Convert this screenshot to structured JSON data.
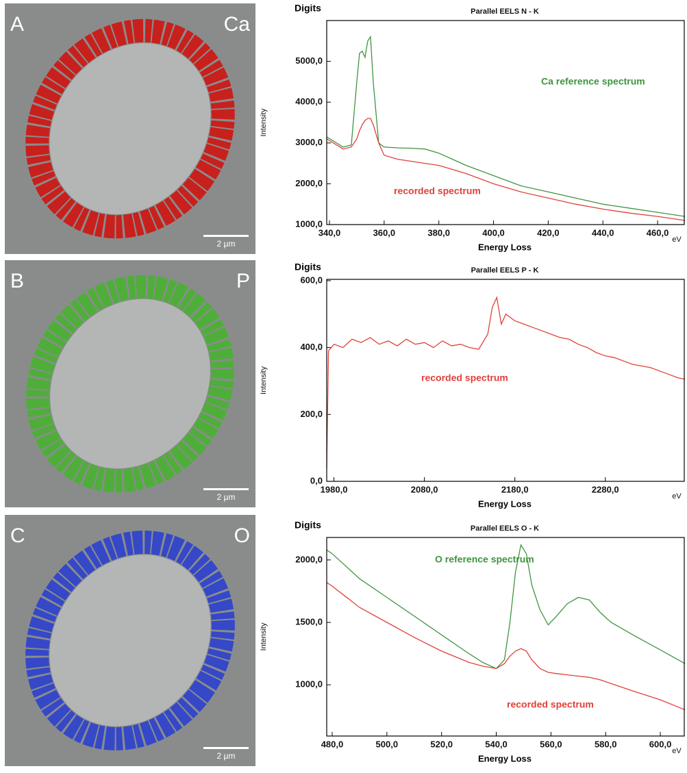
{
  "panels": [
    {
      "letter": "A",
      "element": "Ca",
      "scale": "2 µm"
    },
    {
      "letter": "B",
      "element": "P",
      "scale": "2 µm"
    },
    {
      "letter": "C",
      "element": "O",
      "scale": "2 µm"
    }
  ],
  "chart_data": [
    {
      "type": "line",
      "title": "Parallel EELS N - K",
      "corner_label": "Digits",
      "y_label": "Intensity",
      "x_label": "Energy Loss",
      "x_unit": "eV",
      "x": [
        339,
        345,
        348,
        350,
        351,
        352,
        353,
        354,
        355,
        356,
        358,
        360,
        365,
        370,
        375,
        380,
        385,
        390,
        400,
        410,
        420,
        430,
        440,
        450,
        460,
        470
      ],
      "series": [
        {
          "name": "Ca reference spectrum",
          "color": "#3f9440",
          "values": [
            3150,
            2900,
            2950,
            4500,
            5200,
            5250,
            5100,
            5500,
            5600,
            4500,
            3000,
            2900,
            2880,
            2870,
            2850,
            2750,
            2600,
            2450,
            2200,
            1950,
            1800,
            1650,
            1500,
            1400,
            1300,
            1200
          ]
        },
        {
          "name": "recorded spectrum",
          "color": "#e0403a",
          "values": [
            3100,
            2850,
            2900,
            3100,
            3300,
            3450,
            3550,
            3600,
            3600,
            3450,
            3000,
            2700,
            2600,
            2550,
            2500,
            2450,
            2350,
            2250,
            2000,
            1800,
            1650,
            1500,
            1380,
            1280,
            1200,
            1100
          ]
        }
      ],
      "xlim": [
        339,
        470
      ],
      "ylim": [
        1000,
        6000
      ],
      "xticks": [
        {
          "value": 340,
          "label": "340,0"
        },
        {
          "value": 360,
          "label": "360,0"
        },
        {
          "value": 380,
          "label": "380,0"
        },
        {
          "value": 400,
          "label": "400,0"
        },
        {
          "value": 420,
          "label": "420,0"
        },
        {
          "value": 440,
          "label": "440,0"
        },
        {
          "value": 460,
          "label": "460,0"
        }
      ],
      "yticks": [
        {
          "value": 1000,
          "label": "1000,0"
        },
        {
          "value": 2000,
          "label": "2000,0"
        },
        {
          "value": 3000,
          "label": "3000,0"
        },
        {
          "value": 4000,
          "label": "4000,0"
        },
        {
          "value": 5000,
          "label": "5000,0"
        }
      ]
    },
    {
      "type": "line",
      "title": "Parallel EELS P - K",
      "corner_label": "Digits",
      "y_label": "Intensity",
      "x_label": "Energy Loss",
      "x_unit": "eV",
      "x": [
        1972,
        1974,
        1980,
        1990,
        2000,
        2010,
        2020,
        2030,
        2040,
        2050,
        2060,
        2070,
        2080,
        2090,
        2100,
        2110,
        2120,
        2130,
        2140,
        2150,
        2155,
        2160,
        2165,
        2170,
        2180,
        2190,
        2200,
        2210,
        2220,
        2230,
        2240,
        2250,
        2260,
        2270,
        2280,
        2290,
        2300,
        2310,
        2320,
        2330,
        2340,
        2350,
        2360,
        2368
      ],
      "series": [
        {
          "name": "recorded spectrum",
          "color": "#e0403a",
          "values": [
            40,
            390,
            410,
            400,
            425,
            415,
            430,
            410,
            420,
            405,
            425,
            410,
            415,
            400,
            420,
            405,
            410,
            400,
            395,
            440,
            520,
            550,
            470,
            500,
            480,
            470,
            460,
            450,
            440,
            430,
            425,
            410,
            400,
            385,
            375,
            370,
            360,
            350,
            345,
            340,
            330,
            320,
            310,
            305
          ]
        }
      ],
      "xlim": [
        1972,
        2368
      ],
      "ylim": [
        0,
        604
      ],
      "xticks": [
        {
          "value": 1980,
          "label": "1980,0"
        },
        {
          "value": 2080,
          "label": "2080,0"
        },
        {
          "value": 2180,
          "label": "2180,0"
        },
        {
          "value": 2280,
          "label": "2280,0"
        }
      ],
      "yticks": [
        {
          "value": 0,
          "label": "0,0"
        },
        {
          "value": 200,
          "label": "200,0"
        },
        {
          "value": 400,
          "label": "400,0"
        },
        {
          "value": 600,
          "label": "600,0"
        }
      ]
    },
    {
      "type": "line",
      "title": "Parallel EELS O - K",
      "corner_label": "Digits",
      "y_label": "Intensity",
      "x_label": "Energy Loss",
      "x_unit": "eV",
      "x": [
        478,
        480,
        490,
        500,
        510,
        520,
        530,
        535,
        540,
        543,
        545,
        547,
        549,
        551,
        553,
        556,
        559,
        562,
        566,
        570,
        574,
        578,
        582,
        590,
        600,
        609
      ],
      "series": [
        {
          "name": "O reference spectrum",
          "color": "#3f9440",
          "values": [
            2080,
            2050,
            1850,
            1700,
            1550,
            1400,
            1250,
            1180,
            1130,
            1200,
            1500,
            1900,
            2120,
            2050,
            1800,
            1600,
            1480,
            1550,
            1650,
            1700,
            1680,
            1580,
            1500,
            1400,
            1280,
            1170
          ]
        },
        {
          "name": "recorded spectrum",
          "color": "#e0403a",
          "values": [
            1820,
            1790,
            1620,
            1500,
            1380,
            1270,
            1180,
            1150,
            1130,
            1170,
            1230,
            1270,
            1290,
            1270,
            1200,
            1130,
            1100,
            1090,
            1080,
            1070,
            1060,
            1040,
            1010,
            950,
            880,
            800
          ]
        }
      ],
      "xlim": [
        478,
        609
      ],
      "ylim": [
        590,
        2180
      ],
      "xticks": [
        {
          "value": 480,
          "label": "480,0"
        },
        {
          "value": 500,
          "label": "500,0"
        },
        {
          "value": 520,
          "label": "520,0"
        },
        {
          "value": 540,
          "label": "540,0"
        },
        {
          "value": 560,
          "label": "560,0"
        },
        {
          "value": 580,
          "label": "580,0"
        },
        {
          "value": 600,
          "label": "600,0"
        }
      ],
      "yticks": [
        {
          "value": 1000,
          "label": "1000,0"
        },
        {
          "value": 1500,
          "label": "1500,0"
        },
        {
          "value": 2000,
          "label": "2000,0"
        }
      ]
    }
  ]
}
